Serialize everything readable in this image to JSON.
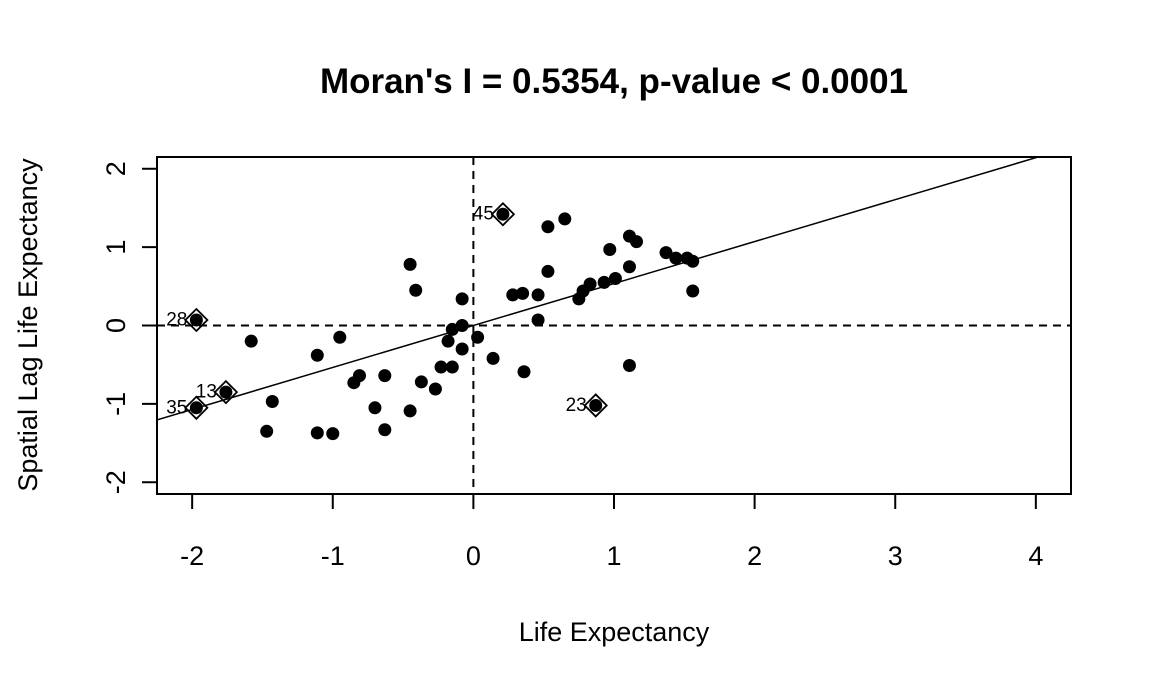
{
  "chart_data": {
    "type": "scatter",
    "title": "Moran's I = 0.5354, p-value < 0.0001",
    "xlabel": "Life Expectancy",
    "ylabel": "Spatial Lag Life Expectancy",
    "xlim": [
      -2.25,
      4.25
    ],
    "ylim": [
      -2.15,
      2.15
    ],
    "x_ticks": [
      -2,
      -1,
      0,
      1,
      2,
      3,
      4
    ],
    "y_ticks": [
      -2,
      -1,
      0,
      1,
      2
    ],
    "grid": false,
    "legend": "none",
    "reference_lines": {
      "x_mean": 0,
      "y_mean": 0
    },
    "regression": {
      "intercept": 0,
      "slope": 0.5354
    },
    "points": [
      {
        "x": -0.45,
        "y": 0.78
      },
      {
        "x": -0.41,
        "y": 0.45
      },
      {
        "x": -0.08,
        "y": 0.34
      },
      {
        "x": 0.21,
        "y": 1.42
      },
      {
        "x": 0.53,
        "y": 1.26
      },
      {
        "x": 0.65,
        "y": 1.36
      },
      {
        "x": 0.97,
        "y": 0.97
      },
      {
        "x": 1.11,
        "y": 1.14
      },
      {
        "x": 1.16,
        "y": 1.07
      },
      {
        "x": 1.37,
        "y": 0.93
      },
      {
        "x": 1.44,
        "y": 0.86
      },
      {
        "x": 1.52,
        "y": 0.86
      },
      {
        "x": 1.56,
        "y": 0.82
      },
      {
        "x": 1.56,
        "y": 0.44
      },
      {
        "x": 1.11,
        "y": 0.75
      },
      {
        "x": 1.01,
        "y": 0.6
      },
      {
        "x": 0.93,
        "y": 0.55
      },
      {
        "x": 0.83,
        "y": 0.53
      },
      {
        "x": 0.78,
        "y": 0.44
      },
      {
        "x": 0.75,
        "y": 0.34
      },
      {
        "x": 0.53,
        "y": 0.69
      },
      {
        "x": 0.46,
        "y": 0.39
      },
      {
        "x": 0.35,
        "y": 0.41
      },
      {
        "x": 0.28,
        "y": 0.39
      },
      {
        "x": 0.46,
        "y": 0.07
      },
      {
        "x": 1.11,
        "y": -0.51
      },
      {
        "x": 0.87,
        "y": -1.02
      },
      {
        "x": 0.36,
        "y": -0.59
      },
      {
        "x": 0.14,
        "y": -0.42
      },
      {
        "x": 0.03,
        "y": -0.15
      },
      {
        "x": -0.08,
        "y": 0.0
      },
      {
        "x": -0.15,
        "y": -0.05
      },
      {
        "x": -0.18,
        "y": -0.2
      },
      {
        "x": -0.08,
        "y": -0.3
      },
      {
        "x": -0.15,
        "y": -0.53
      },
      {
        "x": -0.23,
        "y": -0.53
      },
      {
        "x": -0.27,
        "y": -0.81
      },
      {
        "x": -0.37,
        "y": -0.72
      },
      {
        "x": -0.45,
        "y": -1.09
      },
      {
        "x": -0.63,
        "y": -0.64
      },
      {
        "x": -0.63,
        "y": -1.33
      },
      {
        "x": -0.7,
        "y": -1.05
      },
      {
        "x": -0.81,
        "y": -0.64
      },
      {
        "x": -0.85,
        "y": -0.73
      },
      {
        "x": -0.95,
        "y": -0.15
      },
      {
        "x": -1.0,
        "y": -1.38
      },
      {
        "x": -1.11,
        "y": -0.38
      },
      {
        "x": -1.11,
        "y": -1.37
      },
      {
        "x": -1.43,
        "y": -0.97
      },
      {
        "x": -1.47,
        "y": -1.35
      },
      {
        "x": -1.58,
        "y": -0.2
      },
      {
        "x": -1.76,
        "y": -0.85
      },
      {
        "x": -1.97,
        "y": 0.07
      },
      {
        "x": -1.97,
        "y": -1.05
      }
    ],
    "influential_points": [
      {
        "label": "45",
        "x": 0.21,
        "y": 1.42
      },
      {
        "label": "28",
        "x": -1.97,
        "y": 0.07
      },
      {
        "label": "13",
        "x": -1.76,
        "y": -0.85
      },
      {
        "label": "35",
        "x": -1.97,
        "y": -1.05
      },
      {
        "label": "23",
        "x": 0.87,
        "y": -1.02
      }
    ]
  }
}
